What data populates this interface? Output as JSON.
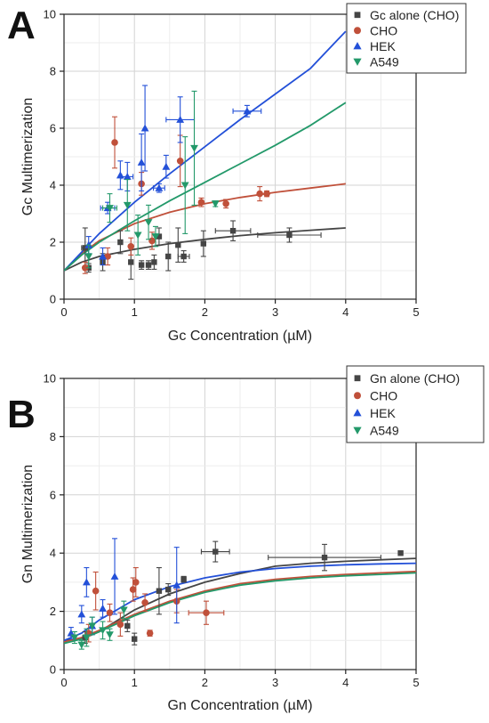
{
  "panels": [
    {
      "letter": "A"
    },
    {
      "letter": "B"
    }
  ],
  "chart_data": [
    {
      "type": "scatter",
      "xlabel": "Gc Concentration (µM)",
      "ylabel": "Gc Multimerization",
      "xlim": [
        0,
        5
      ],
      "ylim": [
        0,
        10
      ],
      "xticks": [
        "0",
        "1",
        "2",
        "3",
        "4",
        "5"
      ],
      "yticks": [
        "0",
        "2",
        "4",
        "6",
        "8",
        "10"
      ],
      "grid": true,
      "legend": "top-right",
      "series": [
        {
          "name": "Gc alone (CHO)",
          "marker": "square",
          "color": "#454545",
          "points": [
            {
              "x": 0.3,
              "y": 1.8,
              "yerr": 0.7,
              "xerr": 0.05
            },
            {
              "x": 0.35,
              "y": 1.1,
              "yerr": 0.15
            },
            {
              "x": 0.55,
              "y": 1.3,
              "yerr": 0.3
            },
            {
              "x": 0.8,
              "y": 2.0,
              "yerr": 0.4
            },
            {
              "x": 0.95,
              "y": 1.3,
              "yerr": 0.6
            },
            {
              "x": 1.1,
              "y": 1.2,
              "yerr": 0.15
            },
            {
              "x": 1.2,
              "y": 1.2,
              "yerr": 0.15
            },
            {
              "x": 1.28,
              "y": 1.3,
              "yerr": 0.25
            },
            {
              "x": 1.35,
              "y": 2.2,
              "yerr": 0.3
            },
            {
              "x": 1.48,
              "y": 1.5,
              "yerr": 0.5
            },
            {
              "x": 1.62,
              "y": 1.9,
              "yerr": 0.6
            },
            {
              "x": 1.7,
              "y": 1.5,
              "yerr": 0.2,
              "xerr": 0.08
            },
            {
              "x": 1.98,
              "y": 1.95,
              "yerr": 0.45
            },
            {
              "x": 2.4,
              "y": 2.4,
              "yerr": 0.35,
              "xerr": 0.25
            },
            {
              "x": 3.2,
              "y": 2.25,
              "yerr": 0.25,
              "xerr": 0.45
            }
          ],
          "fit": [
            [
              0,
              1.0
            ],
            [
              0.25,
              1.3
            ],
            [
              0.5,
              1.5
            ],
            [
              1,
              1.75
            ],
            [
              1.5,
              1.95
            ],
            [
              2,
              2.1
            ],
            [
              2.5,
              2.23
            ],
            [
              3,
              2.33
            ],
            [
              3.5,
              2.42
            ],
            [
              4,
              2.5
            ]
          ]
        },
        {
          "name": "CHO",
          "marker": "circle",
          "color": "#c0503a",
          "points": [
            {
              "x": 0.3,
              "y": 1.1,
              "yerr": 0.2
            },
            {
              "x": 0.62,
              "y": 1.5,
              "yerr": 0.3
            },
            {
              "x": 0.72,
              "y": 5.5,
              "yerr": 0.9
            },
            {
              "x": 0.95,
              "y": 1.85,
              "yerr": 0.3
            },
            {
              "x": 1.1,
              "y": 4.05,
              "yerr": 0.4
            },
            {
              "x": 1.25,
              "y": 2.05,
              "yerr": 0.3
            },
            {
              "x": 1.65,
              "y": 4.85,
              "yerr": 0.9
            },
            {
              "x": 1.95,
              "y": 3.4,
              "yerr": 0.15
            },
            {
              "x": 2.3,
              "y": 3.35,
              "yerr": 0.15
            },
            {
              "x": 2.78,
              "y": 3.7,
              "yerr": 0.25
            },
            {
              "x": 2.88,
              "y": 3.7,
              "yerr": 0.1
            }
          ],
          "fit": [
            [
              0,
              1.0
            ],
            [
              0.25,
              1.6
            ],
            [
              0.5,
              2.05
            ],
            [
              1,
              2.65
            ],
            [
              1.5,
              3.05
            ],
            [
              2,
              3.35
            ],
            [
              2.5,
              3.57
            ],
            [
              3,
              3.75
            ],
            [
              3.5,
              3.9
            ],
            [
              4,
              4.05
            ]
          ]
        },
        {
          "name": "HEK",
          "marker": "triangle-up",
          "color": "#2350d8",
          "points": [
            {
              "x": 0.35,
              "y": 1.9,
              "yerr": 0.3
            },
            {
              "x": 0.55,
              "y": 1.5,
              "yerr": 0.3
            },
            {
              "x": 0.62,
              "y": 3.2,
              "yerr": 0.2,
              "xerr": 0.1
            },
            {
              "x": 0.8,
              "y": 4.35,
              "yerr": 0.5
            },
            {
              "x": 0.9,
              "y": 4.3,
              "yerr": 0.5,
              "xerr": 0.08
            },
            {
              "x": 1.1,
              "y": 4.8,
              "yerr": 1.0
            },
            {
              "x": 1.15,
              "y": 6.0,
              "yerr": 1.5
            },
            {
              "x": 1.35,
              "y": 3.9,
              "yerr": 0.15,
              "xerr": 0.08
            },
            {
              "x": 1.45,
              "y": 4.65,
              "yerr": 0.4
            },
            {
              "x": 1.65,
              "y": 6.3,
              "yerr": 0.8,
              "xerr": 0.2
            },
            {
              "x": 2.6,
              "y": 6.6,
              "yerr": 0.2,
              "xerr": 0.2
            }
          ],
          "fit": [
            [
              0,
              1.0
            ],
            [
              0.25,
              1.65
            ],
            [
              0.5,
              2.3
            ],
            [
              1,
              3.4
            ],
            [
              1.5,
              4.4
            ],
            [
              2,
              5.35
            ],
            [
              2.5,
              6.3
            ],
            [
              3,
              7.2
            ],
            [
              3.5,
              8.1
            ],
            [
              4,
              9.4
            ]
          ]
        },
        {
          "name": "A549",
          "marker": "triangle-down",
          "color": "#23996a",
          "points": [
            {
              "x": 0.35,
              "y": 1.5,
              "yerr": 0.4
            },
            {
              "x": 0.65,
              "y": 3.2,
              "yerr": 0.5,
              "xerr": 0.1
            },
            {
              "x": 0.9,
              "y": 3.3,
              "yerr": 0.9
            },
            {
              "x": 1.05,
              "y": 2.25,
              "yerr": 0.7
            },
            {
              "x": 1.2,
              "y": 2.7,
              "yerr": 0.6
            },
            {
              "x": 1.3,
              "y": 2.2,
              "yerr": 0.35
            },
            {
              "x": 1.72,
              "y": 4.0,
              "yerr": 1.7
            },
            {
              "x": 1.85,
              "y": 5.3,
              "yerr": 2.0
            },
            {
              "x": 2.15,
              "y": 3.35,
              "yerr": 0.1
            }
          ],
          "fit": [
            [
              0,
              1.0
            ],
            [
              0.25,
              1.55
            ],
            [
              0.5,
              2.0
            ],
            [
              1,
              2.75
            ],
            [
              1.5,
              3.45
            ],
            [
              2,
              4.1
            ],
            [
              2.5,
              4.75
            ],
            [
              3,
              5.4
            ],
            [
              3.5,
              6.1
            ],
            [
              4,
              6.9
            ]
          ]
        }
      ]
    },
    {
      "type": "scatter",
      "xlabel": "Gn Concentration (µM)",
      "ylabel": "Gn Multimerization",
      "xlim": [
        0,
        5
      ],
      "ylim": [
        0,
        10
      ],
      "xticks": [
        "0",
        "1",
        "2",
        "3",
        "4",
        "5"
      ],
      "yticks": [
        "0",
        "2",
        "4",
        "6",
        "8",
        "10"
      ],
      "grid": true,
      "legend": "top-right",
      "series": [
        {
          "name": "Gn alone (CHO)",
          "marker": "square",
          "color": "#454545",
          "points": [
            {
              "x": 0.3,
              "y": 1.1,
              "yerr": 0.2
            },
            {
              "x": 0.9,
              "y": 1.5,
              "yerr": 0.2
            },
            {
              "x": 1.0,
              "y": 1.05,
              "yerr": 0.2
            },
            {
              "x": 1.35,
              "y": 2.7,
              "yerr": 0.8
            },
            {
              "x": 1.48,
              "y": 2.75,
              "yerr": 0.2
            },
            {
              "x": 1.7,
              "y": 3.1,
              "yerr": 0.1
            },
            {
              "x": 2.15,
              "y": 4.05,
              "yerr": 0.35,
              "xerr": 0.2
            },
            {
              "x": 3.7,
              "y": 3.85,
              "yerr": 0.45,
              "xerr": 0.8
            },
            {
              "x": 4.78,
              "y": 4.0,
              "yerr": 0.05
            }
          ],
          "fit": [
            [
              0,
              1.0
            ],
            [
              0.25,
              1.05
            ],
            [
              0.5,
              1.3
            ],
            [
              1,
              2.05
            ],
            [
              1.5,
              2.6
            ],
            [
              2,
              3.0
            ],
            [
              2.5,
              3.3
            ],
            [
              3,
              3.55
            ],
            [
              3.5,
              3.65
            ],
            [
              4,
              3.72
            ],
            [
              4.5,
              3.77
            ],
            [
              5,
              3.82
            ]
          ]
        },
        {
          "name": "CHO",
          "marker": "circle",
          "color": "#c0503a",
          "points": [
            {
              "x": 0.35,
              "y": 1.25,
              "yerr": 0.3
            },
            {
              "x": 0.45,
              "y": 2.7,
              "yerr": 0.65
            },
            {
              "x": 0.65,
              "y": 1.95,
              "yerr": 0.3
            },
            {
              "x": 0.8,
              "y": 1.55,
              "yerr": 0.4
            },
            {
              "x": 0.98,
              "y": 2.75,
              "yerr": 0.4
            },
            {
              "x": 1.02,
              "y": 3.0,
              "yerr": 0.5
            },
            {
              "x": 1.15,
              "y": 2.3,
              "yerr": 0.3
            },
            {
              "x": 1.22,
              "y": 1.25,
              "yerr": 0.1
            },
            {
              "x": 1.6,
              "y": 2.35,
              "yerr": 0.4
            },
            {
              "x": 2.02,
              "y": 1.95,
              "yerr": 0.4,
              "xerr": 0.25
            }
          ],
          "fit": [
            [
              0,
              0.95
            ],
            [
              0.25,
              1.1
            ],
            [
              0.5,
              1.35
            ],
            [
              1,
              1.9
            ],
            [
              1.5,
              2.35
            ],
            [
              2,
              2.7
            ],
            [
              2.5,
              2.95
            ],
            [
              3,
              3.1
            ],
            [
              3.5,
              3.2
            ],
            [
              4,
              3.27
            ],
            [
              4.5,
              3.32
            ],
            [
              5,
              3.37
            ]
          ]
        },
        {
          "name": "HEK",
          "marker": "triangle-up",
          "color": "#2350d8",
          "points": [
            {
              "x": 0.1,
              "y": 1.25,
              "yerr": 0.2
            },
            {
              "x": 0.25,
              "y": 1.9,
              "yerr": 0.3
            },
            {
              "x": 0.32,
              "y": 3.0,
              "yerr": 0.5
            },
            {
              "x": 0.4,
              "y": 1.5,
              "yerr": 0.3
            },
            {
              "x": 0.55,
              "y": 2.1,
              "yerr": 0.3
            },
            {
              "x": 0.72,
              "y": 3.2,
              "yerr": 1.3
            },
            {
              "x": 1.6,
              "y": 2.9,
              "yerr": 1.3
            }
          ],
          "fit": [
            [
              0,
              1.0
            ],
            [
              0.25,
              1.25
            ],
            [
              0.5,
              1.7
            ],
            [
              1,
              2.4
            ],
            [
              1.5,
              2.85
            ],
            [
              2,
              3.15
            ],
            [
              2.5,
              3.35
            ],
            [
              3,
              3.47
            ],
            [
              3.5,
              3.55
            ],
            [
              4,
              3.6
            ],
            [
              4.5,
              3.63
            ],
            [
              5,
              3.65
            ]
          ]
        },
        {
          "name": "A549",
          "marker": "triangle-down",
          "color": "#23996a",
          "points": [
            {
              "x": 0.15,
              "y": 1.1,
              "yerr": 0.2
            },
            {
              "x": 0.25,
              "y": 0.85,
              "yerr": 0.15
            },
            {
              "x": 0.32,
              "y": 1.1,
              "yerr": 0.3
            },
            {
              "x": 0.4,
              "y": 1.5,
              "yerr": 0.3
            },
            {
              "x": 0.55,
              "y": 1.35,
              "yerr": 0.3
            },
            {
              "x": 0.65,
              "y": 1.2,
              "yerr": 0.2
            },
            {
              "x": 0.85,
              "y": 2.05,
              "yerr": 0.3
            }
          ],
          "fit": [
            [
              0,
              0.9
            ],
            [
              0.25,
              1.05
            ],
            [
              0.5,
              1.3
            ],
            [
              1,
              1.85
            ],
            [
              1.5,
              2.3
            ],
            [
              2,
              2.65
            ],
            [
              2.5,
              2.9
            ],
            [
              3,
              3.05
            ],
            [
              3.5,
              3.15
            ],
            [
              4,
              3.22
            ],
            [
              4.5,
              3.27
            ],
            [
              5,
              3.32
            ]
          ]
        }
      ]
    }
  ]
}
